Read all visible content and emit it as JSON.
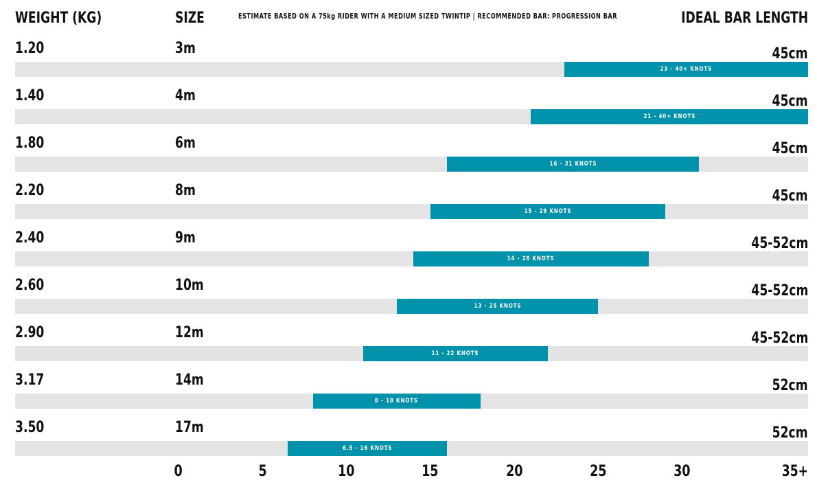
{
  "header": {
    "weight_label": "WEIGHT (KG)",
    "size_label": "SIZE",
    "note": "ESTIMATE BASED ON A 75kg RIDER WITH A MEDIUM SIZED TWINTIP  |  RECOMMENDED BAR: PROGRESSION BAR",
    "bar_length_label": "IDEAL BAR LENGTH"
  },
  "colors": {
    "range": "#0092ab",
    "track": "#e4e4e4",
    "text": "#111111"
  },
  "chart_data": {
    "type": "bar",
    "orientation": "horizontal-range",
    "xlim": [
      0,
      37
    ],
    "x_ticks": [
      "0",
      "5",
      "10",
      "15",
      "20",
      "25",
      "30",
      "35+"
    ],
    "x_tick_values": [
      0,
      5,
      10,
      15,
      20,
      25,
      30,
      35
    ],
    "rows": [
      {
        "weight": "1.20",
        "size": "3m",
        "bar_length": "45cm",
        "range_label": "23 - 40+ KNOTS",
        "min": 23,
        "max": 40
      },
      {
        "weight": "1.40",
        "size": "4m",
        "bar_length": "45cm",
        "range_label": "21 - 40+ KNOTS",
        "min": 21,
        "max": 40
      },
      {
        "weight": "1.80",
        "size": "6m",
        "bar_length": "45cm",
        "range_label": "16 - 31 KNOTS",
        "min": 16,
        "max": 31
      },
      {
        "weight": "2.20",
        "size": "8m",
        "bar_length": "45cm",
        "range_label": "15 - 29 KNOTS",
        "min": 15,
        "max": 29
      },
      {
        "weight": "2.40",
        "size": "9m",
        "bar_length": "45-52cm",
        "range_label": "14 - 28 KNOTS",
        "min": 14,
        "max": 28
      },
      {
        "weight": "2.60",
        "size": "10m",
        "bar_length": "45-52cm",
        "range_label": "13 - 25 KNOTS",
        "min": 13,
        "max": 25
      },
      {
        "weight": "2.90",
        "size": "12m",
        "bar_length": "45-52cm",
        "range_label": "11 - 22 KNOTS",
        "min": 11,
        "max": 22
      },
      {
        "weight": "3.17",
        "size": "14m",
        "bar_length": "52cm",
        "range_label": "8 - 18 KNOTS",
        "min": 8,
        "max": 18
      },
      {
        "weight": "3.50",
        "size": "17m",
        "bar_length": "52cm",
        "range_label": "6.5 - 16 KNOTS",
        "min": 6.5,
        "max": 16
      }
    ]
  }
}
